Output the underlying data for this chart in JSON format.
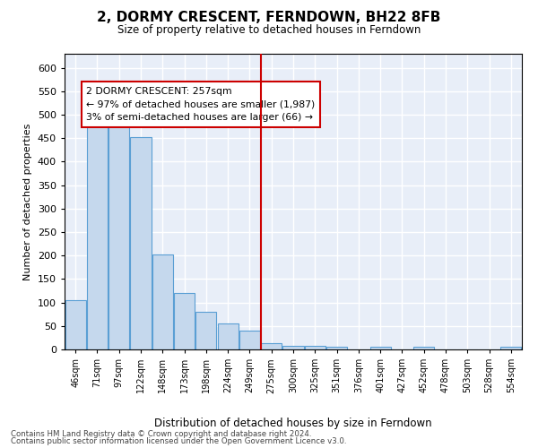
{
  "title": "2, DORMY CRESCENT, FERNDOWN, BH22 8FB",
  "subtitle": "Size of property relative to detached houses in Ferndown",
  "xlabel": "Distribution of detached houses by size in Ferndown",
  "ylabel": "Number of detached properties",
  "bar_color": "#c5d8ed",
  "bar_edge_color": "#5a9fd4",
  "background_color": "#e8eef8",
  "grid_color": "#ffffff",
  "categories": [
    "46sqm",
    "71sqm",
    "97sqm",
    "122sqm",
    "148sqm",
    "173sqm",
    "198sqm",
    "224sqm",
    "249sqm",
    "275sqm",
    "300sqm",
    "325sqm",
    "351sqm",
    "376sqm",
    "401sqm",
    "427sqm",
    "452sqm",
    "478sqm",
    "503sqm",
    "528sqm",
    "554sqm"
  ],
  "values": [
    105,
    487,
    484,
    452,
    202,
    120,
    81,
    56,
    40,
    14,
    8,
    8,
    5,
    0,
    5,
    0,
    5,
    0,
    0,
    0,
    6
  ],
  "vline_x": 8.5,
  "vline_color": "#cc0000",
  "annotation_text": "2 DORMY CRESCENT: 257sqm\n← 97% of detached houses are smaller (1,987)\n3% of semi-detached houses are larger (66) →",
  "ylim": [
    0,
    630
  ],
  "yticks": [
    0,
    50,
    100,
    150,
    200,
    250,
    300,
    350,
    400,
    450,
    500,
    550,
    600
  ],
  "footer1": "Contains HM Land Registry data © Crown copyright and database right 2024.",
  "footer2": "Contains public sector information licensed under the Open Government Licence v3.0."
}
